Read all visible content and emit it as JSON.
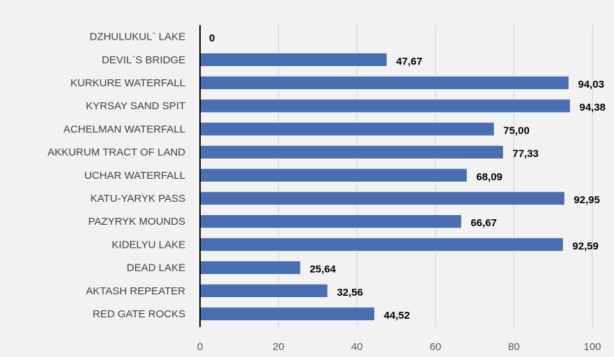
{
  "chart_data": {
    "type": "bar",
    "orientation": "horizontal",
    "title": "",
    "xlabel": "",
    "ylabel": "",
    "categories": [
      "DZHULUKUL` LAKE",
      "DEVIL`S BRIDGE",
      "KURKURE WATERFALL",
      "KYRSAY SAND SPIT",
      "ACHELMAN WATERFALL",
      "AKKURUM TRACT OF LAND",
      "UCHAR WATERFALL",
      "KATU-YARYK PASS",
      "PAZYRYK MOUNDS",
      "KIDELYU LAKE",
      "DEAD LAKE",
      "AKTASH REPEATER",
      "RED GATE ROCKS"
    ],
    "values": [
      0,
      47.67,
      94.03,
      94.38,
      75.0,
      77.33,
      68.09,
      92.95,
      66.67,
      92.59,
      25.64,
      32.56,
      44.52
    ],
    "data_labels": [
      "0",
      "47,67",
      "94,03",
      "94,38",
      "75,00",
      "77,33",
      "68,09",
      "92,95",
      "66,67",
      "92,59",
      "25,64",
      "32,56",
      "44,52"
    ],
    "xlim": [
      0,
      100
    ],
    "xticks": [
      0,
      20,
      40,
      60,
      80,
      100
    ],
    "xtick_labels": [
      "0",
      "20",
      "40",
      "60",
      "80",
      "100"
    ],
    "grid": "vertical",
    "legend": "none",
    "colors": {
      "bar": "#4a6fb1",
      "bar_edge": "#ffffff",
      "grid": "#d0d0d0",
      "axis": "#000000",
      "background": "#f2f2f2"
    }
  }
}
